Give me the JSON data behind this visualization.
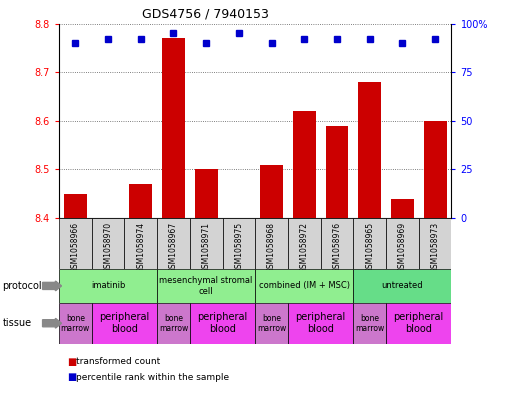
{
  "title": "GDS4756 / 7940153",
  "samples": [
    "GSM1058966",
    "GSM1058970",
    "GSM1058974",
    "GSM1058967",
    "GSM1058971",
    "GSM1058975",
    "GSM1058968",
    "GSM1058972",
    "GSM1058976",
    "GSM1058965",
    "GSM1058969",
    "GSM1058973"
  ],
  "transformed_count": [
    8.45,
    8.4,
    8.47,
    8.77,
    8.5,
    8.4,
    8.51,
    8.62,
    8.59,
    8.68,
    8.44,
    8.6
  ],
  "percentile_rank": [
    90,
    92,
    92,
    95,
    90,
    95,
    90,
    92,
    92,
    92,
    90,
    92
  ],
  "ylim_left": [
    8.4,
    8.8
  ],
  "ylim_right": [
    0,
    100
  ],
  "yticks_left": [
    8.4,
    8.5,
    8.6,
    8.7,
    8.8
  ],
  "yticks_right": [
    0,
    25,
    50,
    75,
    100
  ],
  "bar_color": "#cc0000",
  "dot_color": "#0000cc",
  "bar_bottom": 8.4,
  "protocols": [
    {
      "label": "imatinib",
      "start": 0,
      "end": 3,
      "color": "#90ee90"
    },
    {
      "label": "mesenchymal stromal\ncell",
      "start": 3,
      "end": 6,
      "color": "#90ee90"
    },
    {
      "label": "combined (IM + MSC)",
      "start": 6,
      "end": 9,
      "color": "#90ee90"
    },
    {
      "label": "untreated",
      "start": 9,
      "end": 12,
      "color": "#66dd88"
    }
  ],
  "tissues": [
    {
      "label": "bone\nmarrow",
      "start": 0,
      "end": 1,
      "color": "#cc77cc"
    },
    {
      "label": "peripheral\nblood",
      "start": 1,
      "end": 3,
      "color": "#ee44ee"
    },
    {
      "label": "bone\nmarrow",
      "start": 3,
      "end": 4,
      "color": "#cc77cc"
    },
    {
      "label": "peripheral\nblood",
      "start": 4,
      "end": 6,
      "color": "#ee44ee"
    },
    {
      "label": "bone\nmarrow",
      "start": 6,
      "end": 7,
      "color": "#cc77cc"
    },
    {
      "label": "peripheral\nblood",
      "start": 7,
      "end": 9,
      "color": "#ee44ee"
    },
    {
      "label": "bone\nmarrow",
      "start": 9,
      "end": 10,
      "color": "#cc77cc"
    },
    {
      "label": "peripheral\nblood",
      "start": 10,
      "end": 12,
      "color": "#ee44ee"
    }
  ],
  "sample_bg_color": "#d3d3d3",
  "bg_color": "#ffffff",
  "grid_color": "#888888",
  "protocol_label_color": "#000000",
  "tissue_label_color": "#000000",
  "fig_width": 5.13,
  "fig_height": 3.93,
  "dpi": 100
}
